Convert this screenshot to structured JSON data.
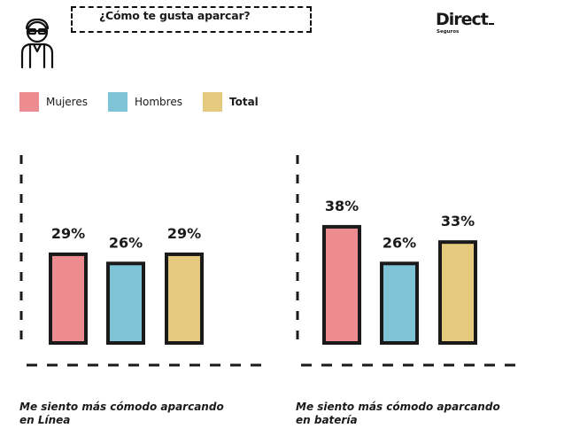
{
  "header": {
    "question": "¿Cómo te gusta aparcar?",
    "brand": "Direct",
    "brand_sub": "Seguros"
  },
  "icons": {
    "person": "person-avatar-icon"
  },
  "colors": {
    "mujeres": "#ec8c90",
    "hombres": "#7ec3d6",
    "total": "#e5c97c",
    "outline": "#1a1a1a"
  },
  "legend": [
    {
      "label": "Mujeres",
      "color": "#ec8c90",
      "bold": false
    },
    {
      "label": "Hombres",
      "color": "#7ec3d6",
      "bold": false
    },
    {
      "label": "Total",
      "color": "#e5c97c",
      "bold": true
    }
  ],
  "chart_data": [
    {
      "type": "bar",
      "categories": [
        "Mujeres",
        "Hombres",
        "Total"
      ],
      "values": [
        29,
        26,
        29
      ],
      "labels": [
        "29%",
        "26%",
        "29%"
      ],
      "unit": "%",
      "caption_line1": "Me siento más cómodo aparcando",
      "caption_line2": "en Línea",
      "grid": false,
      "legend_position": "top-left"
    },
    {
      "type": "bar",
      "categories": [
        "Mujeres",
        "Hombres",
        "Total"
      ],
      "values": [
        38,
        26,
        33
      ],
      "labels": [
        "38%",
        "26%",
        "33%"
      ],
      "unit": "%",
      "caption_line1": "Me siento más cómodo aparcando",
      "caption_line2": "en batería",
      "grid": false,
      "legend_position": "top-left"
    }
  ]
}
